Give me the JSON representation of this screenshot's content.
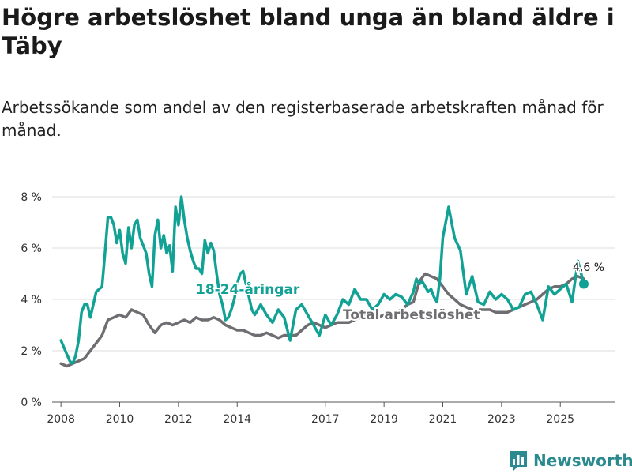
{
  "title": "Högre arbetslöshet bland unga än bland äldre i Täby",
  "subtitle": "Arbetssökande som andel av den registerbaserade arbetskraften månad för månad.",
  "brand": "Newsworthy",
  "colors": {
    "youth": "#12a295",
    "total": "#6e6e72",
    "grid": "#dddddd",
    "brand": "#2a8a8f"
  },
  "chart_data": {
    "type": "line",
    "title": "Högre arbetslöshet bland unga än bland äldre i Täby",
    "xlabel": "",
    "ylabel": "",
    "ylim": [
      0,
      8
    ],
    "xlim": [
      2007.7,
      2026.85
    ],
    "y_ticks": [
      0,
      2,
      4,
      6,
      8
    ],
    "y_tick_labels": [
      "0 %",
      "2 %",
      "4 %",
      "6 %",
      "8 %"
    ],
    "x_ticks": [
      2008,
      2010,
      2012,
      2014,
      2017,
      2019,
      2021,
      2023,
      2025
    ],
    "x_tick_labels": [
      "2008",
      "2010",
      "2012",
      "2014",
      "2017",
      "2019",
      "2021",
      "2023",
      "2025"
    ],
    "series_labels": {
      "youth": "18-24-åringar",
      "total": "Total arbetslöshet"
    },
    "end_label": "4,6 %",
    "series": [
      {
        "name": "18-24-åringar",
        "x": [
          2008.0,
          2008.15,
          2008.3,
          2008.4,
          2008.5,
          2008.6,
          2008.7,
          2008.8,
          2008.9,
          2009.0,
          2009.1,
          2009.2,
          2009.3,
          2009.4,
          2009.5,
          2009.6,
          2009.7,
          2009.8,
          2009.9,
          2010.0,
          2010.1,
          2010.2,
          2010.3,
          2010.4,
          2010.5,
          2010.6,
          2010.7,
          2010.8,
          2010.9,
          2011.0,
          2011.1,
          2011.2,
          2011.3,
          2011.4,
          2011.5,
          2011.6,
          2011.7,
          2011.8,
          2011.9,
          2012.0,
          2012.1,
          2012.2,
          2012.3,
          2012.4,
          2012.5,
          2012.6,
          2012.7,
          2012.8,
          2012.9,
          2013.0,
          2013.1,
          2013.2,
          2013.3,
          2013.4,
          2013.5,
          2013.6,
          2013.7,
          2013.8,
          2013.9,
          2014.0,
          2014.1,
          2014.2,
          2014.3,
          2014.4,
          2014.5,
          2014.6,
          2014.8,
          2015.0,
          2015.2,
          2015.4,
          2015.6,
          2015.8,
          2016.0,
          2016.2,
          2016.4,
          2016.6,
          2016.8,
          2017.0,
          2017.2,
          2017.4,
          2017.6,
          2017.8,
          2018.0,
          2018.2,
          2018.4,
          2018.6,
          2018.8,
          2019.0,
          2019.2,
          2019.4,
          2019.6,
          2019.8,
          2020.0,
          2020.1,
          2020.2,
          2020.3,
          2020.4,
          2020.5,
          2020.6,
          2020.7,
          2020.8,
          2020.9,
          2021.0,
          2021.2,
          2021.4,
          2021.6,
          2021.8,
          2022.0,
          2022.2,
          2022.4,
          2022.6,
          2022.8,
          2023.0,
          2023.2,
          2023.4,
          2023.6,
          2023.8,
          2024.0,
          2024.2,
          2024.4,
          2024.6,
          2024.8,
          2025.0,
          2025.2,
          2025.4,
          2025.6,
          2025.8
        ],
        "values": [
          2.4,
          2.0,
          1.6,
          1.5,
          1.8,
          2.4,
          3.5,
          3.8,
          3.8,
          3.3,
          3.8,
          4.3,
          4.4,
          4.5,
          5.8,
          7.2,
          7.2,
          6.9,
          6.2,
          6.7,
          5.8,
          5.4,
          6.8,
          6.0,
          6.9,
          7.1,
          6.4,
          6.1,
          5.8,
          5.0,
          4.5,
          6.5,
          7.1,
          6.0,
          6.5,
          5.8,
          6.1,
          5.1,
          7.6,
          6.9,
          8.0,
          7.1,
          6.4,
          5.9,
          5.5,
          5.2,
          5.2,
          5.0,
          6.3,
          5.8,
          6.2,
          5.9,
          5.0,
          4.2,
          3.8,
          3.2,
          3.3,
          3.6,
          4.0,
          4.6,
          5.0,
          5.1,
          4.6,
          4.1,
          3.6,
          3.4,
          3.8,
          3.4,
          3.1,
          3.6,
          3.3,
          2.4,
          3.6,
          3.8,
          3.4,
          3.0,
          2.6,
          3.4,
          3.0,
          3.4,
          4.0,
          3.8,
          4.4,
          4.0,
          4.0,
          3.6,
          3.8,
          4.2,
          4.0,
          4.2,
          4.1,
          3.8,
          4.3,
          4.8,
          4.6,
          4.7,
          4.5,
          4.3,
          4.4,
          4.1,
          3.9,
          4.8,
          6.4,
          7.6,
          6.4,
          5.9,
          4.2,
          4.9,
          3.9,
          3.8,
          4.3,
          4.0,
          4.2,
          4.0,
          3.6,
          3.7,
          4.2,
          4.3,
          3.8,
          3.2,
          4.5,
          4.2,
          4.4,
          4.6,
          3.9,
          5.5,
          4.6
        ]
      },
      {
        "name": "Total arbetslöshet",
        "x": [
          2008.0,
          2008.2,
          2008.4,
          2008.6,
          2008.8,
          2009.0,
          2009.2,
          2009.4,
          2009.6,
          2009.8,
          2010.0,
          2010.2,
          2010.4,
          2010.6,
          2010.8,
          2011.0,
          2011.2,
          2011.4,
          2011.6,
          2011.8,
          2012.0,
          2012.2,
          2012.4,
          2012.6,
          2012.8,
          2013.0,
          2013.2,
          2013.4,
          2013.6,
          2013.8,
          2014.0,
          2014.2,
          2014.4,
          2014.6,
          2014.8,
          2015.0,
          2015.2,
          2015.4,
          2015.6,
          2015.8,
          2016.0,
          2016.2,
          2016.4,
          2016.6,
          2016.8,
          2017.0,
          2017.2,
          2017.4,
          2017.6,
          2017.8,
          2018.0,
          2018.2,
          2018.4,
          2018.6,
          2018.8,
          2019.0,
          2019.2,
          2019.4,
          2019.6,
          2019.8,
          2020.0,
          2020.2,
          2020.4,
          2020.6,
          2020.8,
          2021.0,
          2021.2,
          2021.4,
          2021.6,
          2021.8,
          2022.0,
          2022.2,
          2022.4,
          2022.6,
          2022.8,
          2023.0,
          2023.2,
          2023.4,
          2023.6,
          2023.8,
          2024.0,
          2024.2,
          2024.4,
          2024.6,
          2024.8,
          2025.0,
          2025.2,
          2025.4,
          2025.6,
          2025.8
        ],
        "values": [
          1.5,
          1.4,
          1.5,
          1.6,
          1.7,
          2.0,
          2.3,
          2.6,
          3.2,
          3.3,
          3.4,
          3.3,
          3.6,
          3.5,
          3.4,
          3.0,
          2.7,
          3.0,
          3.1,
          3.0,
          3.1,
          3.2,
          3.1,
          3.3,
          3.2,
          3.2,
          3.3,
          3.2,
          3.0,
          2.9,
          2.8,
          2.8,
          2.7,
          2.6,
          2.6,
          2.7,
          2.6,
          2.5,
          2.6,
          2.6,
          2.6,
          2.8,
          3.0,
          3.1,
          3.0,
          2.9,
          3.0,
          3.1,
          3.1,
          3.1,
          3.2,
          3.3,
          3.4,
          3.3,
          3.3,
          3.4,
          3.4,
          3.5,
          3.6,
          3.8,
          3.9,
          4.7,
          5.0,
          4.9,
          4.8,
          4.5,
          4.2,
          4.0,
          3.8,
          3.7,
          3.6,
          3.6,
          3.6,
          3.6,
          3.5,
          3.5,
          3.5,
          3.6,
          3.7,
          3.8,
          3.9,
          4.0,
          4.2,
          4.4,
          4.5,
          4.5,
          4.6,
          4.8,
          4.9,
          4.8
        ]
      }
    ]
  }
}
